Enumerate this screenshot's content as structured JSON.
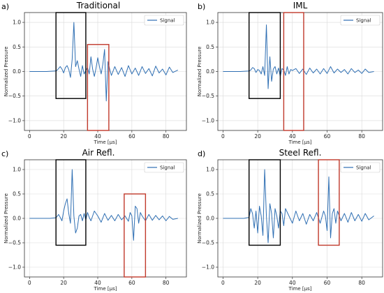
{
  "figure": {
    "x_label": "Time [µs]",
    "y_label": "Normalized Pressure",
    "legend_label": "Signal",
    "colors": {
      "signal": "#2f6fb3",
      "grid": "#d9d9d9",
      "box_black": "#000000",
      "box_red": "#c0392b"
    }
  },
  "chart_data": [
    {
      "type": "line",
      "letter": "a)",
      "title": "Traditional",
      "xlabel": "Time [µs]",
      "ylabel": "Normalized Pressure",
      "xlim": [
        -3,
        92
      ],
      "ylim": [
        -1.2,
        1.2
      ],
      "xticks": [
        0,
        20,
        40,
        60,
        80
      ],
      "yticks": [
        -1.0,
        -0.5,
        0.0,
        0.5,
        1.0
      ],
      "grid": true,
      "legend_position": "top-right",
      "series": [
        {
          "name": "Signal",
          "x": [
            0,
            10,
            15,
            16,
            17,
            18,
            19,
            20,
            21,
            22,
            23,
            24,
            25,
            26,
            27,
            28,
            29,
            30,
            31,
            32,
            33,
            34,
            35,
            36,
            37,
            38,
            39,
            40,
            41,
            42,
            43,
            44,
            45,
            46,
            47,
            48,
            50,
            52,
            54,
            56,
            58,
            60,
            62,
            64,
            66,
            68,
            70,
            72,
            74,
            76,
            78,
            80,
            82,
            84,
            87
          ],
          "y": [
            0,
            0,
            0.01,
            0.02,
            0.06,
            0.1,
            0.05,
            -0.03,
            0.08,
            0.12,
            0.04,
            -0.12,
            0.25,
            1.0,
            0.1,
            0.22,
            0.05,
            -0.1,
            0.12,
            -0.05,
            0.02,
            0.08,
            -0.05,
            0.3,
            0.05,
            -0.1,
            0.07,
            0.28,
            0.1,
            -0.05,
            0.15,
            0.45,
            -0.6,
            0.2,
            0.05,
            -0.08,
            0.1,
            -0.06,
            0.08,
            -0.1,
            0.12,
            -0.05,
            0.07,
            -0.08,
            0.1,
            -0.04,
            0.06,
            -0.09,
            0.11,
            -0.03,
            0.05,
            -0.07,
            0.09,
            -0.02,
            0.03
          ]
        }
      ],
      "boxes": [
        {
          "color": "black",
          "x_range": [
            15.5,
            33
          ],
          "y_range": [
            -0.55,
            1.2
          ]
        },
        {
          "color": "red",
          "x_range": [
            34,
            46.5
          ],
          "y_range": [
            -1.2,
            0.55
          ]
        }
      ]
    },
    {
      "type": "line",
      "letter": "b)",
      "title": "IML",
      "xlabel": "Time [µs]",
      "ylabel": "Normalized Pressure",
      "xlim": [
        -3,
        92
      ],
      "ylim": [
        -1.2,
        1.2
      ],
      "xticks": [
        0,
        20,
        40,
        60,
        80
      ],
      "yticks": [
        -1.0,
        -0.5,
        0.0,
        0.5,
        1.0
      ],
      "grid": true,
      "legend_position": "top-right",
      "series": [
        {
          "name": "Signal",
          "x": [
            0,
            10,
            15,
            16,
            17,
            18,
            19,
            20,
            21,
            22,
            23,
            24,
            25,
            26,
            27,
            28,
            29,
            30,
            31,
            32,
            33,
            34,
            35,
            36,
            37,
            38,
            39,
            40,
            42,
            44,
            46,
            48,
            50,
            52,
            54,
            56,
            58,
            60,
            62,
            64,
            66,
            68,
            70,
            72,
            74,
            76,
            78,
            80,
            82,
            84,
            87
          ],
          "y": [
            0,
            0,
            0.01,
            0.03,
            0.08,
            0.06,
            -0.02,
            0.04,
            0.02,
            -0.05,
            0.1,
            -0.08,
            0.95,
            -0.35,
            0.3,
            -0.2,
            0.05,
            0.1,
            -0.05,
            0.07,
            -0.1,
            0.06,
            0.03,
            -0.08,
            0.1,
            -0.05,
            0.04,
            0.02,
            0.06,
            -0.04,
            0.05,
            -0.06,
            0.07,
            -0.03,
            0.05,
            -0.05,
            0.06,
            -0.04,
            0.1,
            -0.03,
            0.05,
            -0.02,
            0.04,
            -0.05,
            0.06,
            -0.02,
            0.03,
            -0.04,
            0.05,
            -0.02,
            0.0
          ]
        }
      ],
      "boxes": [
        {
          "color": "black",
          "x_range": [
            15,
            33
          ],
          "y_range": [
            -0.55,
            1.2
          ]
        },
        {
          "color": "red",
          "x_range": [
            35,
            46.5
          ],
          "y_range": [
            -1.2,
            1.2
          ]
        }
      ]
    },
    {
      "type": "line",
      "letter": "c)",
      "title": "Air Refl.",
      "xlabel": "Time [µs]",
      "ylabel": "Normalized Pressure",
      "xlim": [
        -3,
        92
      ],
      "ylim": [
        -1.2,
        1.2
      ],
      "xticks": [
        0,
        20,
        40,
        60,
        80
      ],
      "yticks": [
        -1.0,
        -0.5,
        0.0,
        0.5,
        1.0
      ],
      "grid": true,
      "legend_position": "top-right",
      "series": [
        {
          "name": "Signal",
          "x": [
            0,
            12,
            15,
            16,
            17,
            18,
            19,
            20,
            21,
            22,
            23,
            24,
            25,
            26,
            27,
            28,
            29,
            30,
            31,
            32,
            33,
            34,
            35,
            36,
            38,
            40,
            42,
            44,
            46,
            48,
            50,
            52,
            54,
            56,
            58,
            59,
            60,
            61,
            62,
            63,
            64,
            65,
            66,
            68,
            70,
            72,
            74,
            76,
            78,
            80,
            82,
            84,
            87
          ],
          "y": [
            0,
            0,
            0.01,
            0.03,
            0.08,
            0.02,
            -0.05,
            0.15,
            0.3,
            0.4,
            0.1,
            -0.1,
            1.0,
            0.05,
            -0.3,
            -0.2,
            0.05,
            0.08,
            -0.05,
            0.1,
            -0.03,
            0.12,
            0.02,
            -0.05,
            0.15,
            0.05,
            -0.08,
            0.1,
            -0.04,
            0.06,
            -0.05,
            0.08,
            -0.03,
            0.05,
            -0.06,
            0.12,
            0.05,
            -0.45,
            0.25,
            0.2,
            -0.1,
            0.12,
            0.05,
            -0.05,
            0.08,
            -0.04,
            0.06,
            -0.03,
            0.05,
            -0.05,
            0.04,
            -0.02,
            0.0
          ]
        }
      ],
      "boxes": [
        {
          "color": "black",
          "x_range": [
            15.5,
            33
          ],
          "y_range": [
            -0.55,
            1.2
          ]
        },
        {
          "color": "red",
          "x_range": [
            55.5,
            68
          ],
          "y_range": [
            -1.2,
            0.5
          ]
        }
      ]
    },
    {
      "type": "line",
      "letter": "d)",
      "title": "Steel Refl.",
      "xlabel": "Time [µs]",
      "ylabel": "Normalized Pressure",
      "xlim": [
        -3,
        92
      ],
      "ylim": [
        -1.2,
        1.2
      ],
      "xticks": [
        0,
        20,
        40,
        60,
        80
      ],
      "yticks": [
        -1.0,
        -0.5,
        0.0,
        0.5,
        1.0
      ],
      "grid": true,
      "legend_position": "top-right",
      "series": [
        {
          "name": "Signal",
          "x": [
            0,
            12,
            15,
            16,
            17,
            18,
            19,
            20,
            21,
            22,
            23,
            24,
            25,
            26,
            27,
            28,
            29,
            30,
            31,
            32,
            33,
            34,
            35,
            36,
            38,
            40,
            42,
            44,
            46,
            48,
            50,
            52,
            54,
            56,
            58,
            59,
            60,
            61,
            62,
            63,
            64,
            65,
            66,
            68,
            70,
            72,
            74,
            76,
            78,
            80,
            82,
            84,
            87
          ],
          "y": [
            0,
            0,
            0.02,
            0.2,
            0.1,
            -0.2,
            0.15,
            -0.3,
            0.25,
            0.05,
            -0.35,
            1.0,
            0.05,
            -0.5,
            0.3,
            0.1,
            -0.4,
            0.2,
            0.05,
            -0.2,
            0.15,
            0.1,
            -0.15,
            0.2,
            0.05,
            -0.1,
            0.15,
            -0.05,
            0.1,
            -0.12,
            0.08,
            -0.05,
            0.12,
            -0.1,
            0.15,
            0.05,
            -0.25,
            0.85,
            -0.4,
            0.1,
            0.2,
            -0.1,
            0.15,
            -0.05,
            0.1,
            -0.08,
            0.12,
            -0.05,
            0.08,
            -0.06,
            0.1,
            -0.03,
            0.05
          ]
        }
      ],
      "boxes": [
        {
          "color": "black",
          "x_range": [
            15,
            33
          ],
          "y_range": [
            -0.55,
            1.2
          ]
        },
        {
          "color": "red",
          "x_range": [
            55,
            67
          ],
          "y_range": [
            -0.55,
            1.2
          ]
        }
      ]
    }
  ]
}
